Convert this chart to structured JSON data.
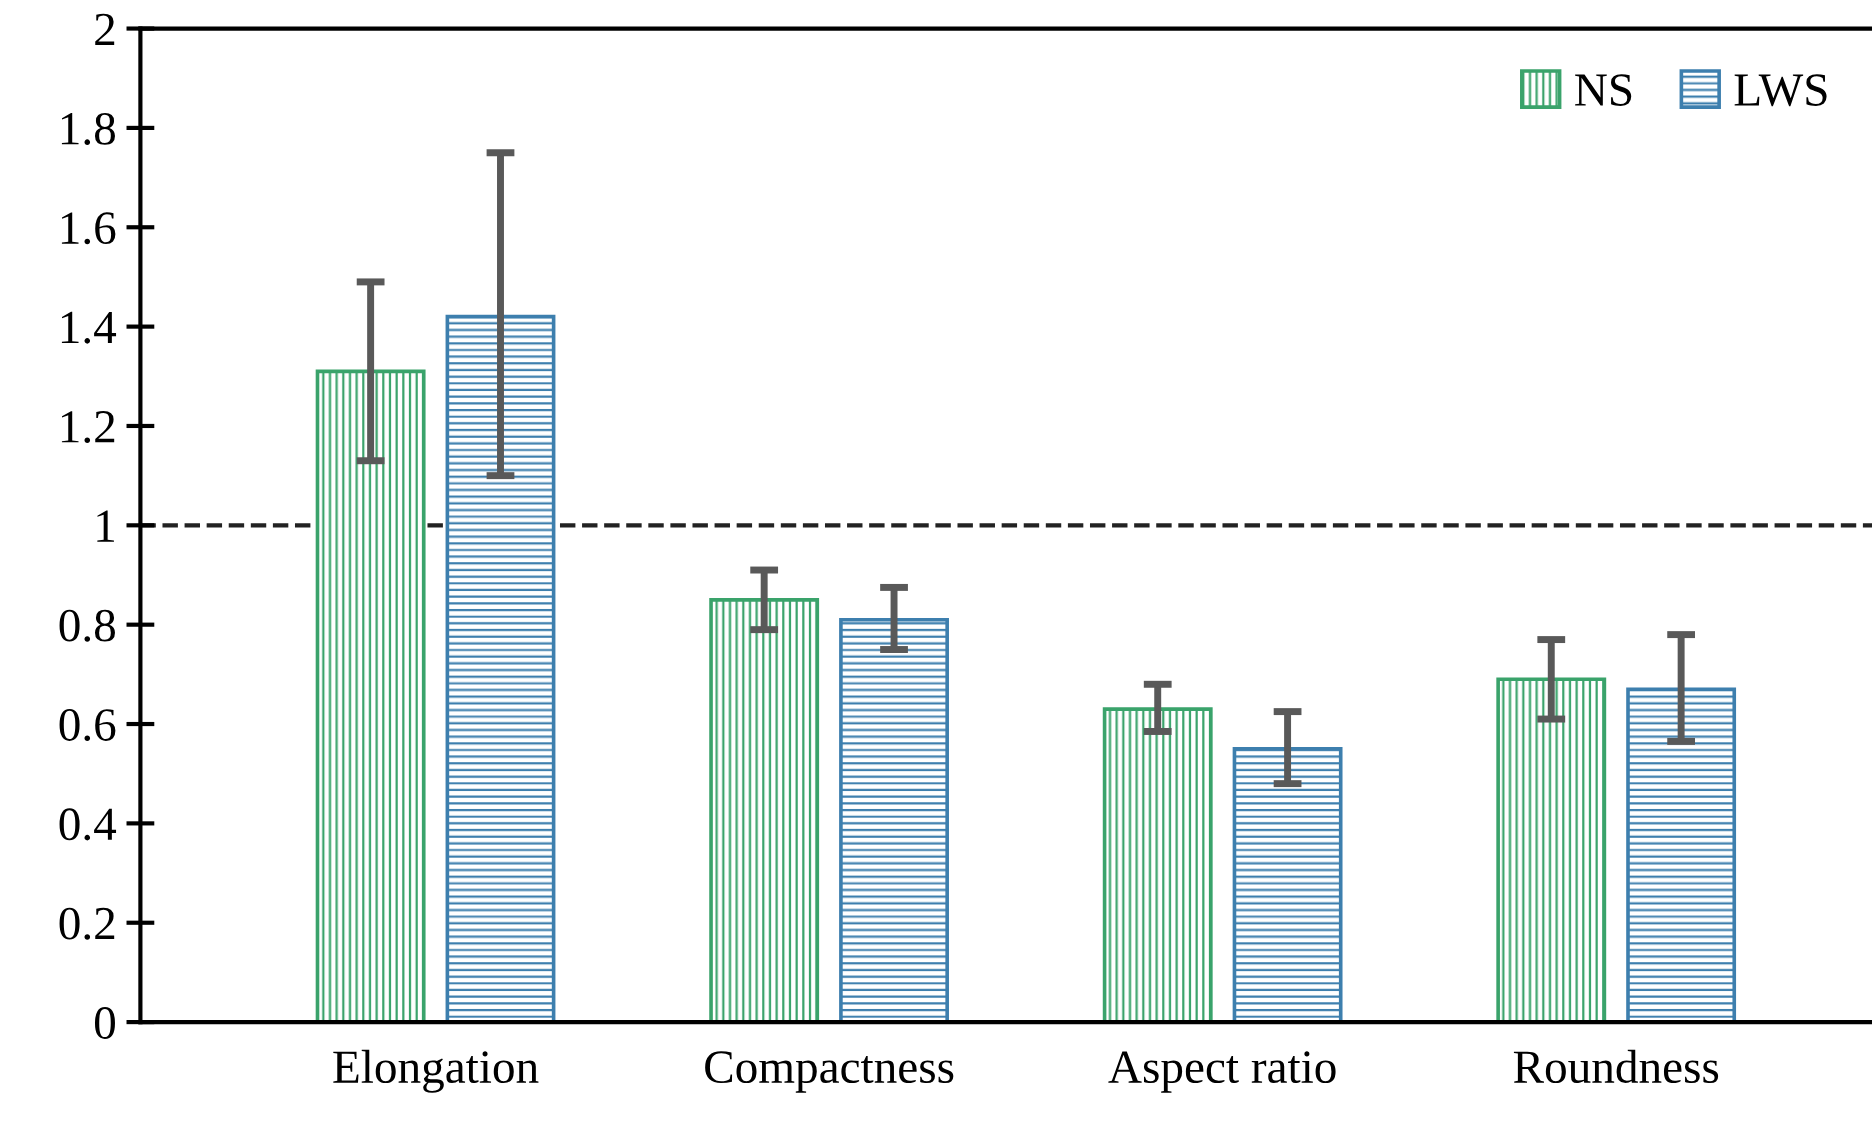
{
  "chart_data": {
    "type": "bar",
    "categories": [
      "Elongation",
      "Compactness",
      "Aspect ratio",
      "Roundness"
    ],
    "series": [
      {
        "name": "NS",
        "color": "#3aa36b",
        "values": [
          1.31,
          0.85,
          0.63,
          0.69
        ],
        "errors": [
          [
            1.13,
            1.49
          ],
          [
            0.79,
            0.91
          ],
          [
            0.585,
            0.68
          ],
          [
            0.61,
            0.77
          ]
        ]
      },
      {
        "name": "LWS",
        "color": "#3d7fae",
        "values": [
          1.42,
          0.81,
          0.55,
          0.67
        ],
        "errors": [
          [
            1.1,
            1.75
          ],
          [
            0.75,
            0.875
          ],
          [
            0.48,
            0.625
          ],
          [
            0.565,
            0.78
          ]
        ]
      }
    ],
    "ylim": [
      0,
      2
    ],
    "yticks": [
      0,
      0.2,
      0.4,
      0.6,
      0.8,
      1,
      1.2,
      1.4,
      1.6,
      1.8,
      2
    ],
    "ref_lines": [
      {
        "axis": "y",
        "value": 1,
        "line_style": "dashed",
        "color": "#222222"
      }
    ],
    "grid": false,
    "legend": "top right"
  }
}
